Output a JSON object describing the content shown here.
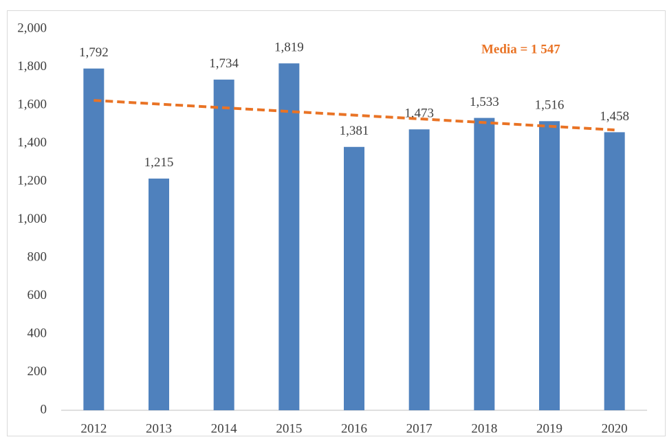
{
  "chart_data": {
    "type": "bar",
    "categories": [
      "2012",
      "2013",
      "2014",
      "2015",
      "2016",
      "2017",
      "2018",
      "2019",
      "2020"
    ],
    "values": [
      1792,
      1215,
      1734,
      1819,
      1381,
      1473,
      1533,
      1516,
      1458
    ],
    "value_labels": [
      "1,792",
      "1,215",
      "1,734",
      "1,819",
      "1,381",
      "1,473",
      "1,533",
      "1,516",
      "1,458"
    ],
    "color": "#4f81bd",
    "ylim": [
      0,
      2000
    ],
    "yticks": [
      0,
      200,
      400,
      600,
      800,
      {
        "value": 1000,
        "label": "1,000"
      },
      {
        "value": 1200,
        "label": "1,200"
      },
      {
        "value": 1400,
        "label": "1,400"
      },
      {
        "value": 1600,
        "label": "1,600"
      },
      {
        "value": 1800,
        "label": "1,800"
      },
      {
        "value": 2000,
        "label": "2,000"
      }
    ],
    "grid": false,
    "trendline": {
      "start": 1625,
      "end": 1470,
      "color": "#e97325",
      "dashed": true
    },
    "annotation": "Media = 1 547"
  }
}
